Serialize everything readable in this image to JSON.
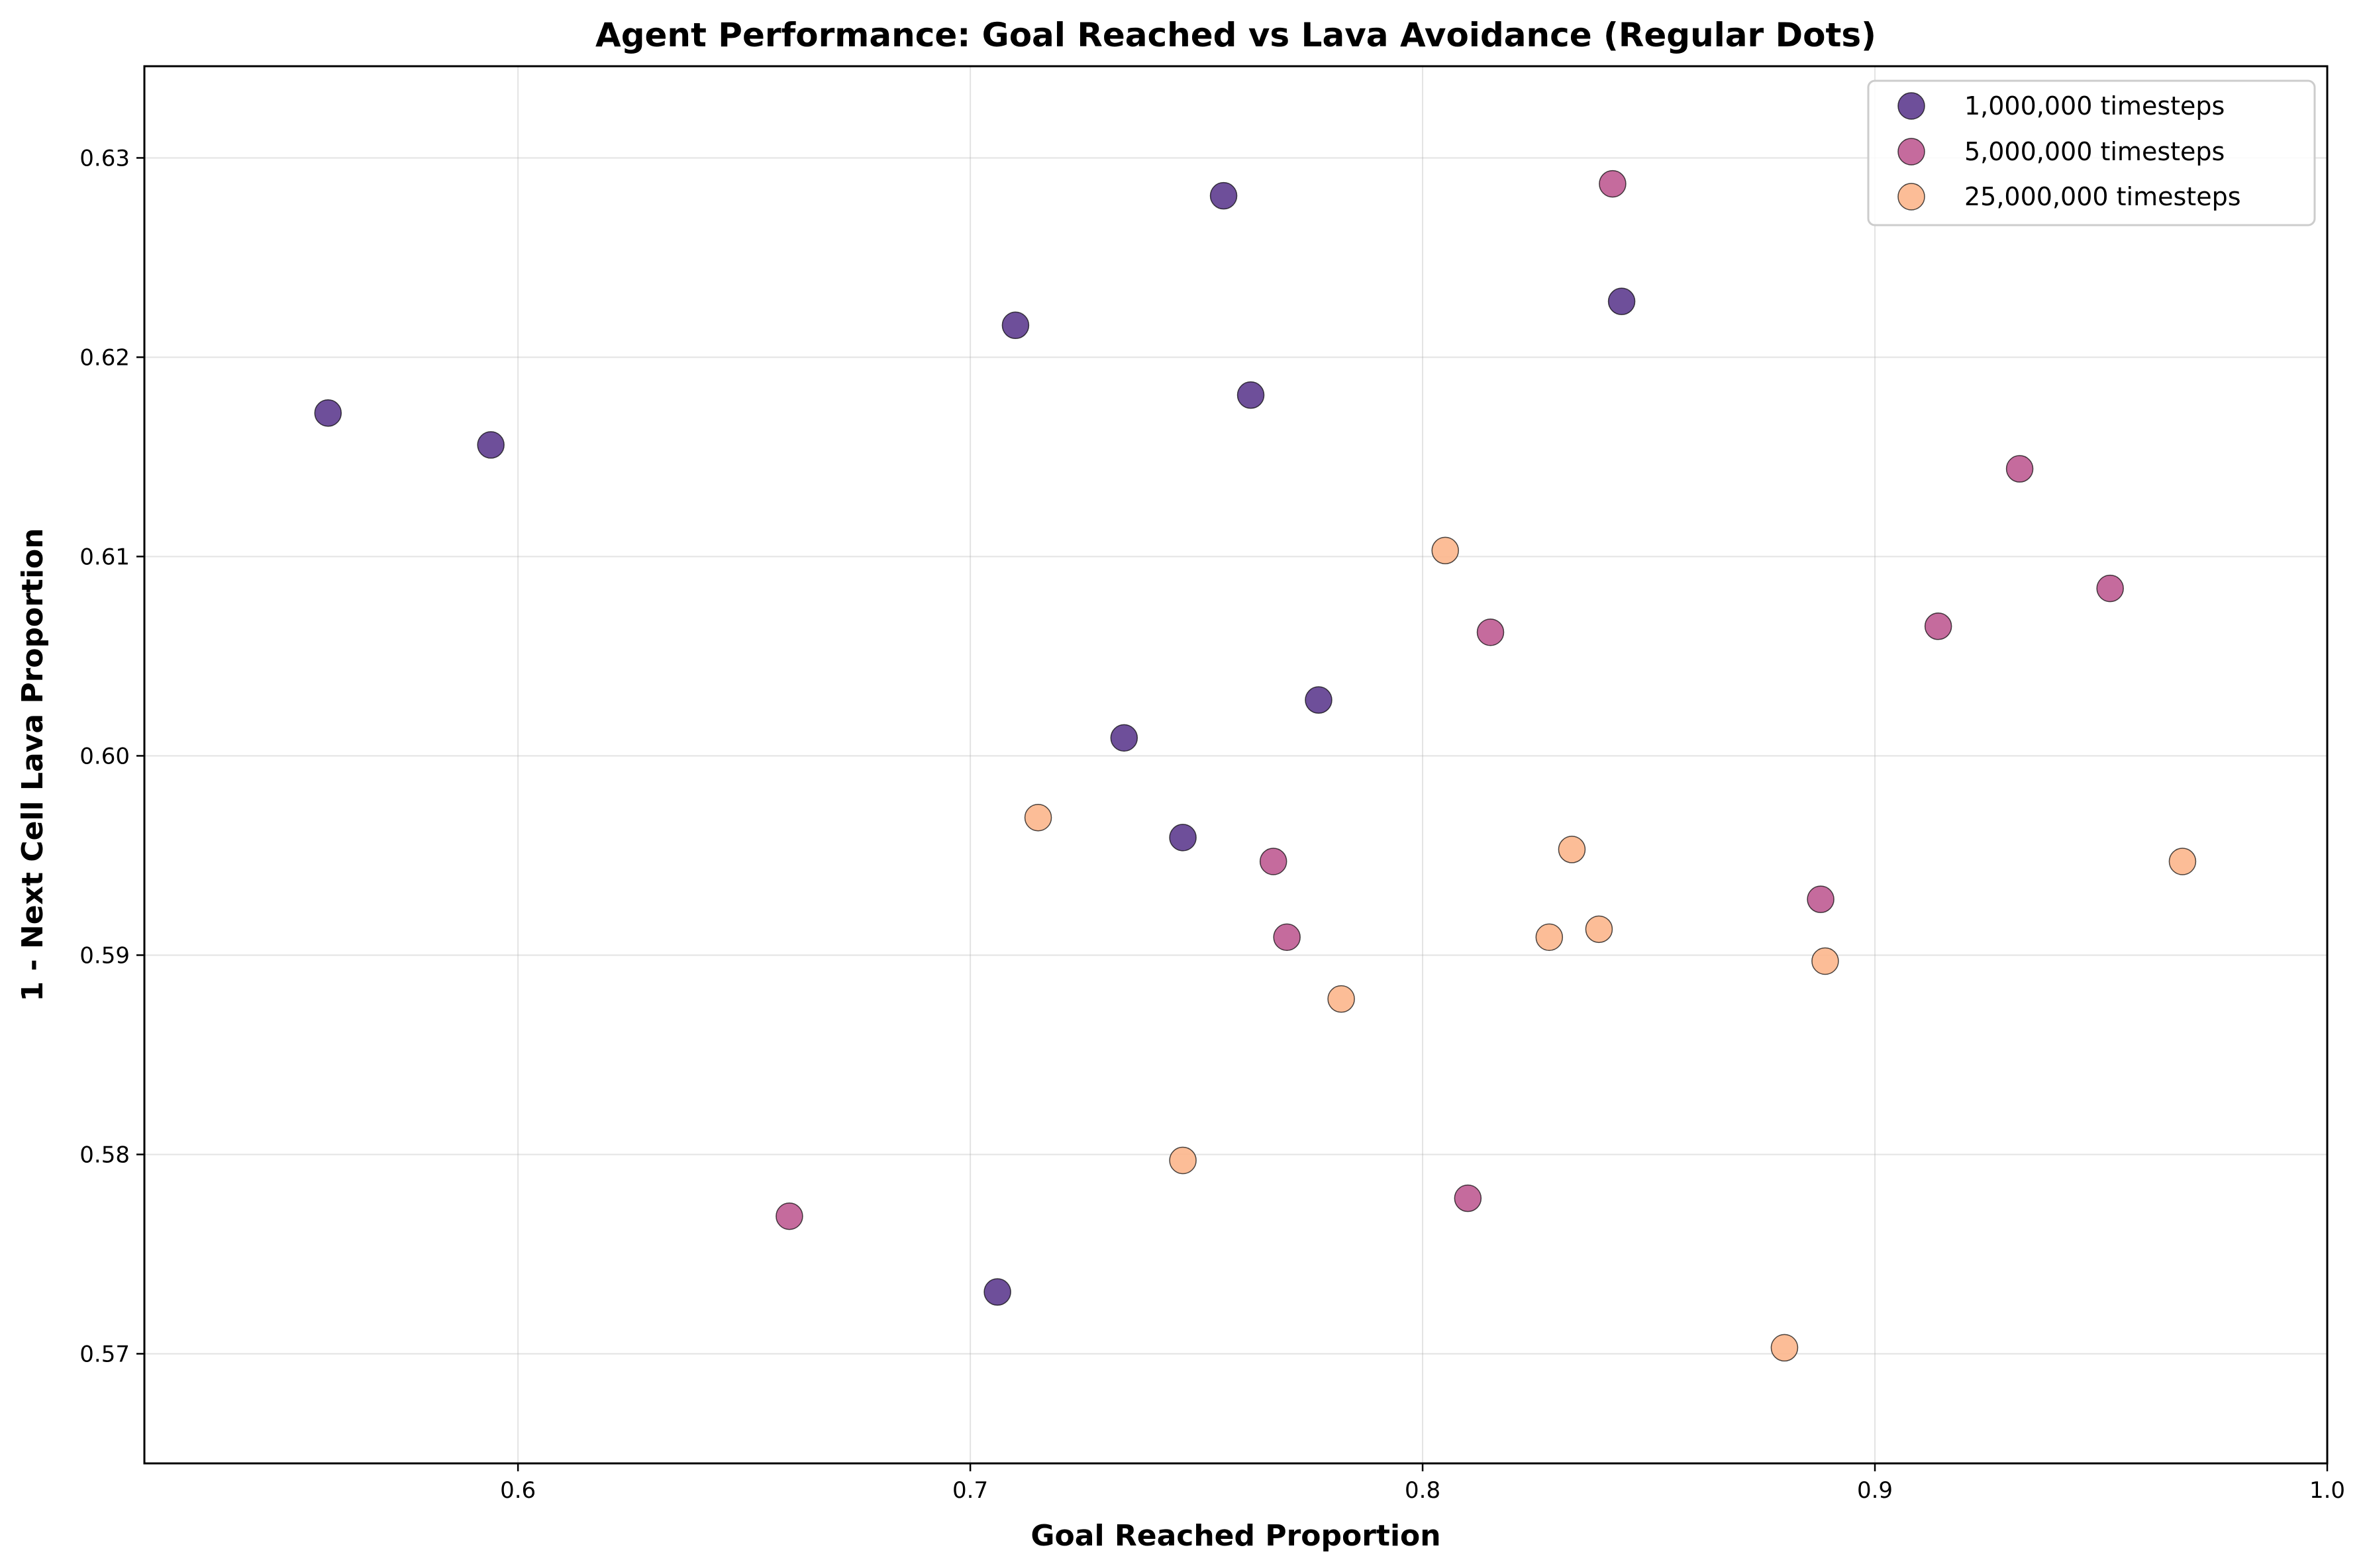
{
  "chart_data": {
    "type": "scatter",
    "title": "Agent Performance: Goal Reached vs Lava Avoidance (Regular Dots)",
    "xlabel": "Goal Reached Proportion",
    "ylabel": "1 - Next Cell Lava Proportion",
    "xlim": [
      0.5174,
      1.0
    ],
    "ylim": [
      0.5645,
      0.6346
    ],
    "xticks": [
      "0.6",
      "0.7",
      "0.8",
      "0.9",
      "1.0"
    ],
    "yticks": [
      "0.57",
      "0.58",
      "0.59",
      "0.60",
      "0.61",
      "0.62",
      "0.63"
    ],
    "grid": true,
    "legend_position": "top-right",
    "series": [
      {
        "name": "1,000,000 timesteps",
        "color": "#5e3c8f",
        "points": [
          [
            0.558,
            0.6172
          ],
          [
            0.594,
            0.6156
          ],
          [
            0.71,
            0.6216
          ],
          [
            0.756,
            0.6281
          ],
          [
            0.762,
            0.6181
          ],
          [
            0.844,
            0.6228
          ],
          [
            0.777,
            0.6028
          ],
          [
            0.734,
            0.6009
          ],
          [
            0.747,
            0.5959
          ],
          [
            0.706,
            0.5731
          ]
        ]
      },
      {
        "name": "5,000,000 timesteps",
        "color": "#bf5b92",
        "points": [
          [
            0.842,
            0.6287
          ],
          [
            0.932,
            0.6144
          ],
          [
            0.952,
            0.6084
          ],
          [
            0.914,
            0.6065
          ],
          [
            0.815,
            0.6062
          ],
          [
            0.767,
            0.5947
          ],
          [
            0.77,
            0.5909
          ],
          [
            0.888,
            0.5928
          ],
          [
            0.66,
            0.5769
          ],
          [
            0.81,
            0.5778
          ]
        ]
      },
      {
        "name": "25,000,000 timesteps",
        "color": "#fcb68c",
        "points": [
          [
            0.805,
            0.6103
          ],
          [
            0.715,
            0.5969
          ],
          [
            0.833,
            0.5953
          ],
          [
            0.828,
            0.5909
          ],
          [
            0.839,
            0.5913
          ],
          [
            0.889,
            0.5897
          ],
          [
            0.782,
            0.5878
          ],
          [
            0.968,
            0.5947
          ],
          [
            0.747,
            0.5797
          ],
          [
            0.88,
            0.5703
          ]
        ]
      }
    ]
  }
}
